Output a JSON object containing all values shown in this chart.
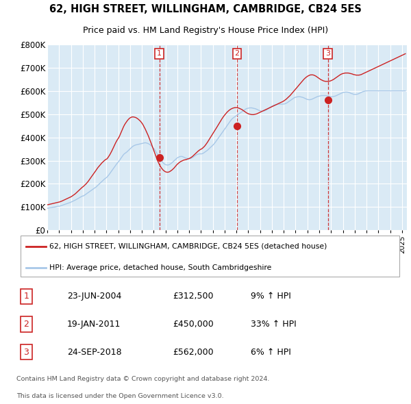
{
  "title": "62, HIGH STREET, WILLINGHAM, CAMBRIDGE, CB24 5ES",
  "subtitle": "Price paid vs. HM Land Registry's House Price Index (HPI)",
  "legend_entry1": "62, HIGH STREET, WILLINGHAM, CAMBRIDGE, CB24 5ES (detached house)",
  "legend_entry2": "HPI: Average price, detached house, South Cambridgeshire",
  "transaction_display": [
    [
      "1",
      "23-JUN-2004",
      "£312,500",
      "9% ↑ HPI"
    ],
    [
      "2",
      "19-JAN-2011",
      "£450,000",
      "33% ↑ HPI"
    ],
    [
      "3",
      "24-SEP-2018",
      "£562,000",
      "6% ↑ HPI"
    ]
  ],
  "transactions": [
    {
      "label": "1",
      "year": 2004,
      "month": 6,
      "day": 23,
      "price": 312500
    },
    {
      "label": "2",
      "year": 2011,
      "month": 1,
      "day": 19,
      "price": 450000
    },
    {
      "label": "3",
      "year": 2018,
      "month": 9,
      "day": 24,
      "price": 562000
    }
  ],
  "footer_line1": "Contains HM Land Registry data © Crown copyright and database right 2024.",
  "footer_line2": "This data is licensed under the Open Government Licence v3.0.",
  "hpi_line_color": "#a8c8e8",
  "price_line_color": "#cc2222",
  "marker_color": "#cc2222",
  "vline_color": "#cc2222",
  "label_box_color": "#cc2222",
  "plot_bg_color": "#daeaf5",
  "ylim": [
    0,
    800000
  ],
  "ytick_vals": [
    0,
    100000,
    200000,
    300000,
    400000,
    500000,
    600000,
    700000,
    800000
  ],
  "ytick_labels": [
    "£0",
    "£100K",
    "£200K",
    "£300K",
    "£400K",
    "£500K",
    "£600K",
    "£700K",
    "£800K"
  ],
  "xstart_year": 1995,
  "xend_year": 2025,
  "hpi_monthly": [
    95000,
    96500,
    97000,
    97500,
    98000,
    99000,
    99500,
    100000,
    101000,
    102000,
    103000,
    103500,
    104000,
    105000,
    106500,
    108000,
    109500,
    111000,
    112500,
    114000,
    115500,
    117000,
    118500,
    120000,
    122000,
    124000,
    126000,
    128000,
    130000,
    132500,
    135000,
    137500,
    140000,
    142500,
    145000,
    147000,
    148000,
    150000,
    153000,
    156000,
    159000,
    162000,
    165000,
    168000,
    171000,
    174000,
    177000,
    180000,
    183000,
    186000,
    190000,
    194000,
    198000,
    202000,
    206000,
    210000,
    214000,
    218000,
    222000,
    225000,
    228000,
    233000,
    238000,
    244000,
    250000,
    256000,
    262000,
    268000,
    274000,
    280000,
    286000,
    291000,
    296000,
    302000,
    308000,
    314000,
    320000,
    326000,
    330000,
    333000,
    336000,
    340000,
    344000,
    348000,
    352000,
    356000,
    360000,
    363000,
    365000,
    367000,
    368000,
    369000,
    370000,
    371000,
    372000,
    373000,
    374000,
    375000,
    376000,
    377000,
    376000,
    375000,
    373000,
    371000,
    368000,
    364000,
    360000,
    355000,
    350000,
    344000,
    337000,
    330000,
    323000,
    316000,
    309000,
    302000,
    296000,
    291000,
    287000,
    284000,
    282000,
    281000,
    281000,
    282000,
    284000,
    287000,
    290000,
    294000,
    298000,
    302000,
    306000,
    310000,
    313000,
    315000,
    317000,
    318000,
    318000,
    317000,
    315000,
    313000,
    311000,
    310000,
    309000,
    308000,
    308000,
    309000,
    311000,
    313000,
    316000,
    319000,
    322000,
    325000,
    327000,
    328000,
    329000,
    329000,
    329000,
    330000,
    332000,
    335000,
    338000,
    341000,
    344000,
    348000,
    352000,
    356000,
    360000,
    364000,
    368000,
    373000,
    378000,
    384000,
    390000,
    396000,
    402000,
    408000,
    414000,
    420000,
    426000,
    432000,
    438000,
    444000,
    450000,
    456000,
    462000,
    468000,
    474000,
    479000,
    483000,
    486000,
    489000,
    492000,
    495000,
    498000,
    501000,
    504000,
    507000,
    510000,
    513000,
    516000,
    519000,
    522000,
    524000,
    525000,
    526000,
    527000,
    527000,
    527000,
    526000,
    525000,
    524000,
    523000,
    521000,
    519000,
    517000,
    515000,
    514000,
    513000,
    513000,
    513000,
    514000,
    516000,
    518000,
    521000,
    524000,
    527000,
    530000,
    533000,
    535000,
    537000,
    539000,
    540000,
    541000,
    542000,
    543000,
    543000,
    543000,
    543000,
    543000,
    543000,
    544000,
    545000,
    547000,
    549000,
    552000,
    555000,
    558000,
    561000,
    564000,
    567000,
    570000,
    572000,
    573000,
    574000,
    575000,
    575000,
    575000,
    574000,
    573000,
    572000,
    570000,
    568000,
    566000,
    564000,
    563000,
    562000,
    562000,
    563000,
    564000,
    566000,
    568000,
    570000,
    572000,
    574000,
    576000,
    577000,
    578000,
    579000,
    580000,
    580000,
    580000,
    580000,
    580000,
    579000,
    578000,
    577000,
    576000,
    575000,
    575000,
    575000,
    576000,
    577000,
    578000,
    580000,
    582000,
    584000,
    586000,
    588000,
    590000,
    592000,
    593000,
    594000,
    595000,
    595000,
    595000,
    594000,
    593000,
    591000,
    589000,
    588000,
    586000,
    585000,
    585000,
    585000,
    586000,
    587000,
    589000,
    591000,
    593000,
    595000,
    597000,
    598000,
    599000,
    600000,
    600000,
    600000,
    600000,
    600000,
    600000,
    600000,
    600000,
    600000,
    600000,
    600000,
    600000,
    600000,
    600000,
    600000,
    600000,
    600000,
    600000,
    600000,
    600000,
    600000,
    600000,
    600000,
    600000,
    600000,
    600000,
    600000,
    600000,
    600000,
    600000,
    600000,
    600000,
    600000,
    600000,
    600000,
    600000,
    600000,
    600000,
    600000,
    600000,
    600000
  ],
  "price_monthly": [
    110000,
    111000,
    112000,
    113000,
    114000,
    115000,
    116000,
    117000,
    118000,
    119000,
    120000,
    121000,
    122000,
    123500,
    125000,
    127000,
    129000,
    131000,
    133000,
    135000,
    137000,
    139000,
    141000,
    143000,
    145000,
    148000,
    151000,
    154000,
    157000,
    161000,
    165000,
    169000,
    173000,
    177000,
    181000,
    185000,
    188000,
    192000,
    196000,
    200000,
    205000,
    210000,
    216000,
    222000,
    228000,
    234000,
    240000,
    246000,
    252000,
    258000,
    264000,
    270000,
    275000,
    280000,
    285000,
    290000,
    294000,
    298000,
    302000,
    305000,
    307000,
    312000,
    318000,
    325000,
    333000,
    341000,
    350000,
    359000,
    368000,
    377000,
    385000,
    392000,
    398000,
    407000,
    416000,
    426000,
    436000,
    446000,
    454000,
    461000,
    467000,
    473000,
    478000,
    482000,
    485000,
    487000,
    488000,
    488000,
    487000,
    486000,
    484000,
    481000,
    478000,
    474000,
    470000,
    465000,
    459000,
    452000,
    444000,
    436000,
    427000,
    418000,
    408000,
    397000,
    386000,
    375000,
    363000,
    351000,
    339000,
    327000,
    316000,
    305000,
    295000,
    286000,
    278000,
    271000,
    265000,
    260000,
    256000,
    253000,
    251000,
    250000,
    250000,
    251000,
    253000,
    256000,
    259000,
    263000,
    267000,
    272000,
    277000,
    282000,
    286000,
    290000,
    293000,
    296000,
    298000,
    300000,
    302000,
    303000,
    304000,
    305000,
    307000,
    308000,
    310000,
    312000,
    315000,
    318000,
    322000,
    326000,
    330000,
    334000,
    338000,
    342000,
    345000,
    348000,
    350000,
    353000,
    357000,
    361000,
    366000,
    372000,
    378000,
    385000,
    392000,
    399000,
    406000,
    413000,
    419000,
    426000,
    432000,
    439000,
    446000,
    453000,
    460000,
    467000,
    474000,
    481000,
    487000,
    493000,
    498000,
    503000,
    508000,
    512000,
    516000,
    519000,
    522000,
    524000,
    526000,
    527000,
    528000,
    528000,
    528000,
    527000,
    526000,
    524000,
    522000,
    520000,
    517000,
    514000,
    511000,
    508000,
    505000,
    503000,
    501000,
    500000,
    499000,
    498000,
    498000,
    498000,
    499000,
    500000,
    501000,
    503000,
    505000,
    507000,
    509000,
    511000,
    513000,
    515000,
    517000,
    519000,
    521000,
    523000,
    525000,
    527000,
    529000,
    531000,
    533000,
    535000,
    537000,
    539000,
    541000,
    543000,
    545000,
    547000,
    549000,
    551000,
    553000,
    555000,
    558000,
    561000,
    564000,
    568000,
    572000,
    576000,
    580000,
    585000,
    590000,
    595000,
    600000,
    605000,
    610000,
    615000,
    620000,
    625000,
    630000,
    635000,
    640000,
    645000,
    650000,
    654000,
    658000,
    661000,
    664000,
    666000,
    668000,
    669000,
    669000,
    669000,
    668000,
    666000,
    664000,
    661000,
    658000,
    655000,
    652000,
    649000,
    647000,
    645000,
    643000,
    642000,
    641000,
    641000,
    641000,
    641000,
    642000,
    643000,
    645000,
    647000,
    649000,
    652000,
    655000,
    658000,
    661000,
    664000,
    667000,
    670000,
    672000,
    674000,
    675000,
    676000,
    677000,
    677000,
    677000,
    677000,
    676000,
    675000,
    674000,
    673000,
    671000,
    670000,
    669000,
    668000,
    668000,
    668000,
    668000,
    669000,
    670000,
    672000,
    674000,
    676000,
    678000,
    680000,
    682000,
    684000,
    686000,
    688000,
    690000,
    692000,
    694000,
    696000,
    698000,
    700000,
    702000,
    704000,
    706000,
    708000,
    710000,
    712000,
    714000,
    716000,
    718000,
    720000,
    722000,
    724000,
    726000,
    728000,
    730000,
    732000,
    734000,
    736000,
    738000,
    740000,
    742000,
    744000,
    746000,
    748000,
    750000,
    752000,
    754000,
    756000,
    758000,
    760000
  ]
}
